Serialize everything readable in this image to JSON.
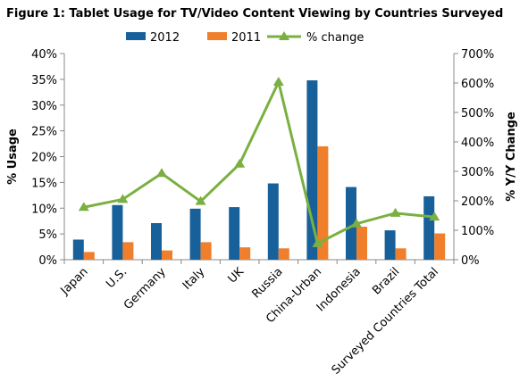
{
  "chart_data": {
    "type": "bar",
    "title": "Figure 1: Tablet Usage for TV/Video Content Viewing by Countries Surveyed",
    "ylabel": "% Usage",
    "y2label": "% Y/Y Change",
    "xlabel": "",
    "categories": [
      "Japan",
      "U.S.",
      "Germany",
      "Italy",
      "UK",
      "Russia",
      "China-Urban",
      "Indonesia",
      "Brazil",
      "Surveyed Countries Total"
    ],
    "ylim": [
      0,
      40
    ],
    "y2lim": [
      0,
      700
    ],
    "yticks": [
      "0%",
      "5%",
      "10%",
      "15%",
      "20%",
      "25%",
      "30%",
      "35%",
      "40%"
    ],
    "y2ticks": [
      "0%",
      "100%",
      "200%",
      "300%",
      "400%",
      "500%",
      "600%",
      "700%"
    ],
    "series": [
      {
        "name": "2012",
        "kind": "bar",
        "axis": "left",
        "color": "#17609a",
        "values": [
          3.9,
          10.6,
          7.1,
          9.9,
          10.2,
          14.8,
          34.8,
          14.1,
          5.7,
          12.3
        ]
      },
      {
        "name": "2011",
        "kind": "bar",
        "axis": "left",
        "color": "#f07f2c",
        "values": [
          1.5,
          3.4,
          1.8,
          3.4,
          2.4,
          2.2,
          22.0,
          6.4,
          2.2,
          5.1
        ]
      },
      {
        "name": "% change",
        "kind": "line",
        "axis": "right",
        "color": "#7ab040",
        "values": [
          178,
          205,
          293,
          198,
          325,
          603,
          55,
          122,
          158,
          145
        ]
      }
    ],
    "legend": {
      "position": "top",
      "items": [
        "2012",
        "2011",
        "% change"
      ]
    },
    "grid": false
  }
}
